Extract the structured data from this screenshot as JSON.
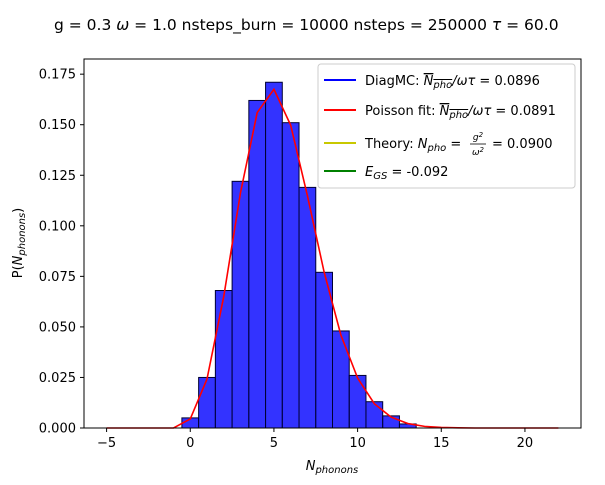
{
  "chart_data": {
    "type": "bar",
    "title": "g = 0.3 ω = 1.0 nsteps_burn = 10000 nsteps = 250000 τ = 60.0",
    "xlabel": "N_phonons",
    "ylabel": "P(N_phonons)",
    "xlim": [
      -6.35,
      23.35
    ],
    "ylim": [
      0,
      0.1825
    ],
    "x_ticks": [
      -5,
      0,
      5,
      10,
      15,
      20
    ],
    "y_ticks": [
      0.0,
      0.025,
      0.05,
      0.075,
      0.1,
      0.125,
      0.15,
      0.175
    ],
    "x_tick_labels": [
      "−5",
      "0",
      "5",
      "10",
      "15",
      "20"
    ],
    "y_tick_labels": [
      "0.000",
      "0.025",
      "0.050",
      "0.075",
      "0.100",
      "0.125",
      "0.150",
      "0.175"
    ],
    "histogram": {
      "name": "DiagMC",
      "color": "#0000ff",
      "bin_width": 1,
      "bins": [
        0,
        1,
        2,
        3,
        4,
        5,
        6,
        7,
        8,
        9,
        10,
        11,
        12,
        13
      ],
      "values": [
        0.005,
        0.025,
        0.068,
        0.122,
        0.162,
        0.171,
        0.151,
        0.119,
        0.077,
        0.048,
        0.026,
        0.013,
        0.006,
        0.002
      ]
    },
    "series": [
      {
        "name": "Poisson fit",
        "color": "#ff0000",
        "x": [
          -5,
          -4,
          -3,
          -2,
          -1,
          0,
          1,
          2,
          3,
          4,
          5,
          6,
          7,
          8,
          9,
          10,
          11,
          12,
          13,
          14,
          15,
          16,
          17,
          18,
          19,
          20,
          21,
          22
        ],
        "values": [
          0,
          0,
          0,
          0,
          0,
          0.0045,
          0.0242,
          0.065,
          0.1163,
          0.156,
          0.1675,
          0.1498,
          0.1149,
          0.0771,
          0.046,
          0.0247,
          0.012,
          0.0054,
          0.0022,
          0.0008,
          0.0003,
          0.0001,
          0,
          0,
          0,
          0,
          0,
          0
        ]
      }
    ],
    "legend": {
      "placement": "top-right",
      "entries": [
        {
          "color": "#0000ff",
          "text": "DiagMC: N_pho/ωτ = 0.0896"
        },
        {
          "color": "#ff0000",
          "text": "Poisson fit: N_pho/ωτ = 0.0891"
        },
        {
          "color": "#c8c800",
          "text": "Theory: N_pho = g²/ω² = 0.0900"
        },
        {
          "color": "#008000",
          "text": "E_GS = -0.092"
        }
      ]
    }
  }
}
